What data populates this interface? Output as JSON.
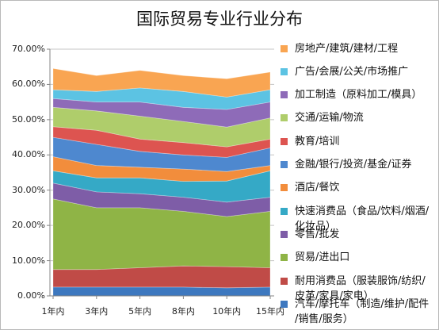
{
  "chart_data": {
    "type": "area",
    "stacked": true,
    "title": "国际贸易专业行业分布",
    "categories": [
      "1年内",
      "3年内",
      "5年内",
      "8年内",
      "10年内",
      "15年内"
    ],
    "ylim": [
      0,
      70
    ],
    "yticks": [
      0,
      10,
      20,
      30,
      40,
      50,
      60,
      70
    ],
    "ytick_labels": [
      "0.00%",
      "10.00%",
      "20.00%",
      "30.00%",
      "40.00%",
      "50.00%",
      "60.00%",
      "70.00%"
    ],
    "grid": "horizontal",
    "legend": "right",
    "series": [
      {
        "name": "房地产/建筑/建材/工程",
        "color": "#F9A552",
        "values": [
          6.0,
          4.5,
          5.0,
          4.5,
          5.2,
          5.0
        ]
      },
      {
        "name": "广告/会展/公关/市场推广",
        "color": "#5CC3E3",
        "values": [
          2.5,
          3.0,
          4.0,
          4.5,
          3.5,
          3.5
        ]
      },
      {
        "name": "加工制造（原料加工/模具）",
        "color": "#8E6BB8",
        "values": [
          2.5,
          2.5,
          4.0,
          4.0,
          5.0,
          4.5
        ]
      },
      {
        "name": "交通/运输/物流",
        "color": "#AFCD6B",
        "values": [
          5.5,
          5.5,
          6.5,
          6.0,
          5.6,
          6.0
        ]
      },
      {
        "name": "教育/培训",
        "color": "#DD5450",
        "values": [
          3.0,
          4.0,
          3.5,
          3.5,
          3.0,
          2.5
        ]
      },
      {
        "name": "金融/银行/投资/基金/证券",
        "color": "#4E88CF",
        "values": [
          5.5,
          6.0,
          4.5,
          4.0,
          4.0,
          5.0
        ]
      },
      {
        "name": "酒店/餐饮",
        "color": "#F28D3C",
        "values": [
          4.0,
          3.5,
          3.0,
          3.5,
          2.7,
          1.5
        ]
      },
      {
        "name": "快速消费品（食品/饮料/烟酒/化妆品）",
        "color": "#35A9C6",
        "values": [
          3.5,
          4.0,
          4.5,
          4.5,
          6.0,
          7.5
        ]
      },
      {
        "name": "零售/批发",
        "color": "#7E5DA7",
        "values": [
          4.5,
          4.5,
          4.0,
          4.0,
          4.1,
          4.0
        ]
      },
      {
        "name": "贸易/进出口",
        "color": "#8FB446",
        "values": [
          20.0,
          17.5,
          17.0,
          15.5,
          14.2,
          16.0
        ]
      },
      {
        "name": "耐用消费品（服装服饰/纺织/皮革/家具/家电）",
        "color": "#C04B47",
        "values": [
          5.0,
          5.0,
          5.5,
          6.0,
          6.0,
          5.5
        ]
      },
      {
        "name": "汽车/摩托车（制造/维护/配件/销售/服务）",
        "color": "#3D78BF",
        "values": [
          2.5,
          2.5,
          2.5,
          2.5,
          2.3,
          2.5
        ]
      }
    ]
  }
}
